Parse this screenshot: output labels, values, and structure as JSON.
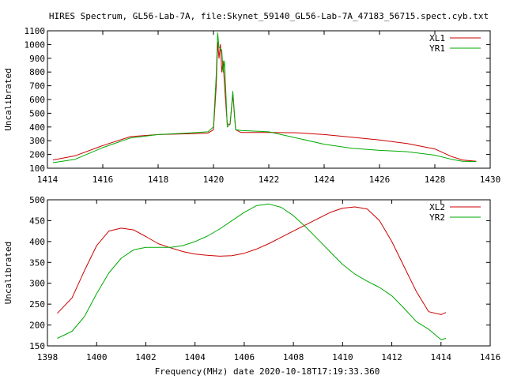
{
  "figure": {
    "title": "HIRES Spectrum, GL56-Lab-7A, file:Skynet_59140_GL56-Lab-7A_47183_56715.spect.cyb.txt",
    "xlabel": "Frequency(MHz) date 2020-10-18T17:19:33.360"
  },
  "chart_data": [
    {
      "type": "line",
      "ylabel": "Uncalibrated",
      "xlim": [
        1414,
        1430
      ],
      "ylim": [
        100,
        1100
      ],
      "xticks": [
        "1414",
        "1416",
        "1418",
        "1420",
        "1422",
        "1424",
        "1426",
        "1428",
        "1430"
      ],
      "yticks": [
        "100",
        "200",
        "300",
        "400",
        "500",
        "600",
        "700",
        "800",
        "900",
        "1000",
        "1100"
      ],
      "grid": false,
      "legend": "top-right",
      "series": [
        {
          "name": "XL1",
          "color": "#cc0000",
          "points": [
            [
              1414.2,
              160
            ],
            [
              1415,
              190
            ],
            [
              1416,
              265
            ],
            [
              1417,
              330
            ],
            [
              1418,
              345
            ],
            [
              1419,
              350
            ],
            [
              1419.8,
              355
            ],
            [
              1420.0,
              380
            ],
            [
              1420.1,
              700
            ],
            [
              1420.15,
              1020
            ],
            [
              1420.2,
              900
            ],
            [
              1420.25,
              1000
            ],
            [
              1420.3,
              800
            ],
            [
              1420.35,
              880
            ],
            [
              1420.4,
              700
            ],
            [
              1420.5,
              420
            ],
            [
              1420.6,
              420
            ],
            [
              1420.7,
              640
            ],
            [
              1420.8,
              380
            ],
            [
              1421,
              360
            ],
            [
              1422,
              360
            ],
            [
              1423,
              358
            ],
            [
              1424,
              345
            ],
            [
              1425,
              325
            ],
            [
              1426,
              305
            ],
            [
              1427,
              280
            ],
            [
              1428,
              240
            ],
            [
              1428.6,
              185
            ],
            [
              1429,
              160
            ],
            [
              1429.5,
              150
            ]
          ]
        },
        {
          "name": "YR1",
          "color": "#00aa00",
          "points": [
            [
              1414.2,
              140
            ],
            [
              1415,
              165
            ],
            [
              1416,
              250
            ],
            [
              1417,
              320
            ],
            [
              1418,
              345
            ],
            [
              1419,
              355
            ],
            [
              1419.8,
              365
            ],
            [
              1420.0,
              400
            ],
            [
              1420.1,
              780
            ],
            [
              1420.15,
              1085
            ],
            [
              1420.2,
              980
            ],
            [
              1420.3,
              960
            ],
            [
              1420.35,
              800
            ],
            [
              1420.4,
              880
            ],
            [
              1420.5,
              400
            ],
            [
              1420.6,
              420
            ],
            [
              1420.7,
              660
            ],
            [
              1420.8,
              380
            ],
            [
              1421,
              375
            ],
            [
              1422,
              365
            ],
            [
              1423,
              320
            ],
            [
              1424,
              275
            ],
            [
              1425,
              245
            ],
            [
              1426,
              230
            ],
            [
              1427,
              220
            ],
            [
              1428,
              195
            ],
            [
              1428.6,
              165
            ],
            [
              1429,
              150
            ],
            [
              1429.5,
              148
            ]
          ]
        }
      ]
    },
    {
      "type": "line",
      "ylabel": "Uncalibrated",
      "xlim": [
        1398,
        1416
      ],
      "ylim": [
        150,
        500
      ],
      "xticks": [
        "1398",
        "1400",
        "1402",
        "1404",
        "1406",
        "1408",
        "1410",
        "1412",
        "1414",
        "1416"
      ],
      "yticks": [
        "150",
        "200",
        "250",
        "300",
        "350",
        "400",
        "450",
        "500"
      ],
      "grid": false,
      "legend": "top-right",
      "series": [
        {
          "name": "XL2",
          "color": "#cc0000",
          "points": [
            [
              1398.4,
              228
            ],
            [
              1399,
              265
            ],
            [
              1399.5,
              330
            ],
            [
              1400,
              390
            ],
            [
              1400.5,
              425
            ],
            [
              1401,
              432
            ],
            [
              1401.5,
              428
            ],
            [
              1402,
              412
            ],
            [
              1402.5,
              395
            ],
            [
              1403,
              385
            ],
            [
              1403.5,
              376
            ],
            [
              1404,
              370
            ],
            [
              1404.5,
              367
            ],
            [
              1405,
              365
            ],
            [
              1405.5,
              366
            ],
            [
              1406,
              372
            ],
            [
              1406.5,
              382
            ],
            [
              1407,
              395
            ],
            [
              1407.5,
              410
            ],
            [
              1408,
              425
            ],
            [
              1408.5,
              440
            ],
            [
              1409,
              455
            ],
            [
              1409.5,
              470
            ],
            [
              1410,
              480
            ],
            [
              1410.5,
              483
            ],
            [
              1411,
              478
            ],
            [
              1411.5,
              450
            ],
            [
              1412,
              400
            ],
            [
              1412.5,
              340
            ],
            [
              1413,
              280
            ],
            [
              1413.5,
              232
            ],
            [
              1414,
              225
            ],
            [
              1414.2,
              230
            ]
          ]
        },
        {
          "name": "YR2",
          "color": "#00aa00",
          "points": [
            [
              1398.4,
              168
            ],
            [
              1399,
              185
            ],
            [
              1399.5,
              220
            ],
            [
              1400,
              275
            ],
            [
              1400.5,
              325
            ],
            [
              1401,
              360
            ],
            [
              1401.5,
              380
            ],
            [
              1402,
              386
            ],
            [
              1402.5,
              386
            ],
            [
              1403,
              386
            ],
            [
              1403.5,
              390
            ],
            [
              1404,
              400
            ],
            [
              1404.5,
              413
            ],
            [
              1405,
              430
            ],
            [
              1405.5,
              450
            ],
            [
              1406,
              470
            ],
            [
              1406.5,
              486
            ],
            [
              1407,
              490
            ],
            [
              1407.5,
              482
            ],
            [
              1408,
              462
            ],
            [
              1408.5,
              435
            ],
            [
              1409,
              405
            ],
            [
              1409.5,
              375
            ],
            [
              1410,
              345
            ],
            [
              1410.5,
              322
            ],
            [
              1411,
              305
            ],
            [
              1411.5,
              290
            ],
            [
              1412,
              270
            ],
            [
              1412.5,
              240
            ],
            [
              1413,
              208
            ],
            [
              1413.5,
              190
            ],
            [
              1414,
              165
            ],
            [
              1414.2,
              168
            ]
          ]
        }
      ]
    }
  ]
}
